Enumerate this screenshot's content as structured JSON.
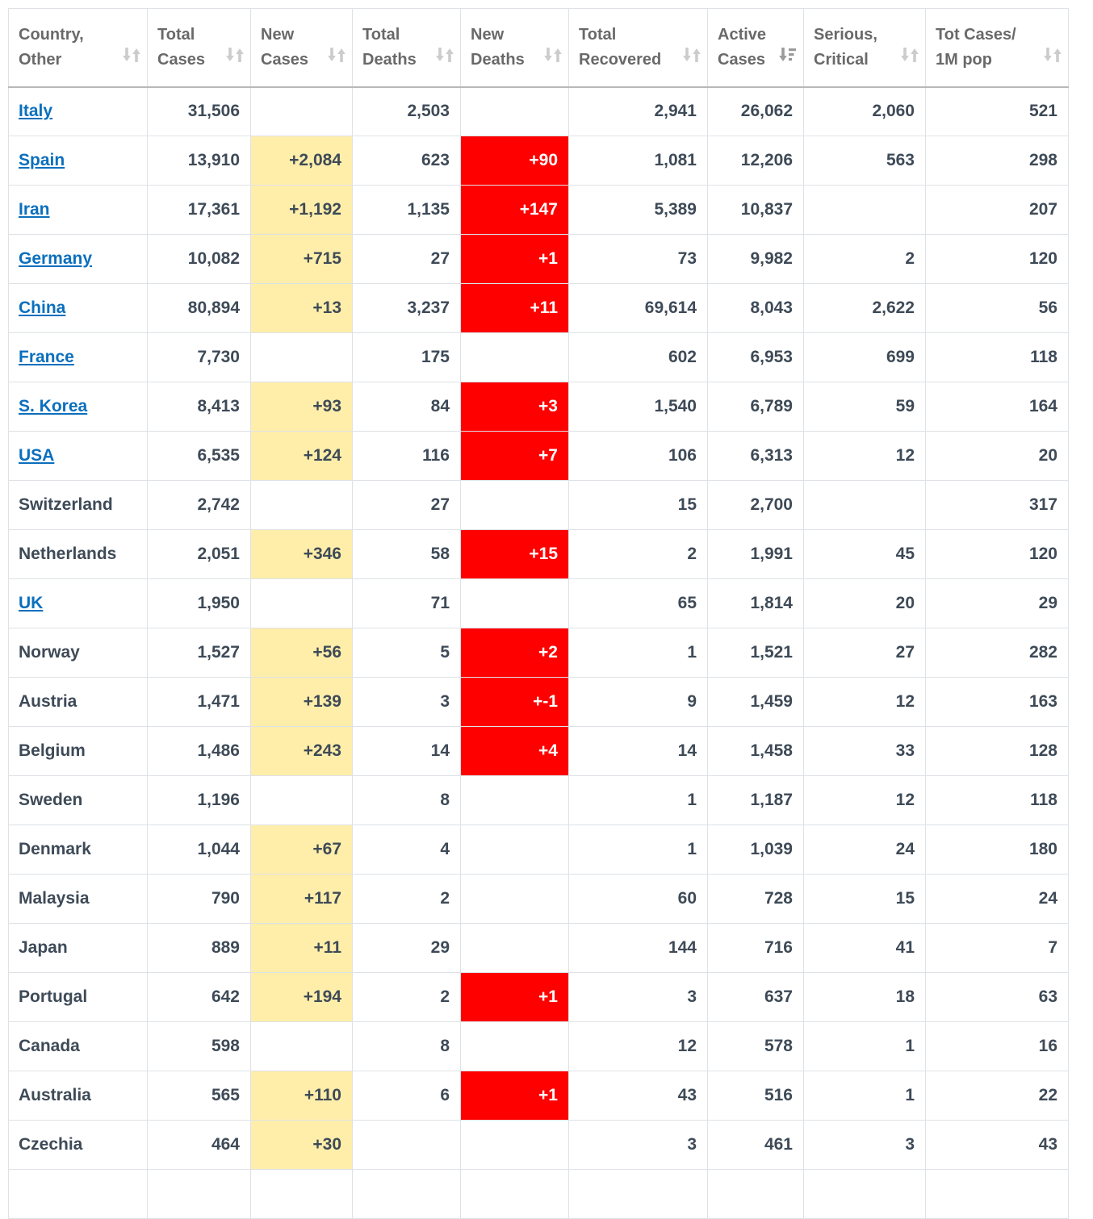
{
  "table": {
    "columns": [
      {
        "id": "country",
        "label": "Country, Other",
        "sort_state": "sortable"
      },
      {
        "id": "total_cases",
        "label": "Total Cases",
        "sort_state": "sortable"
      },
      {
        "id": "new_cases",
        "label": "New Cases",
        "sort_state": "sortable"
      },
      {
        "id": "total_deaths",
        "label": "Total Deaths",
        "sort_state": "sortable"
      },
      {
        "id": "new_deaths",
        "label": "New Deaths",
        "sort_state": "sortable"
      },
      {
        "id": "total_recovered",
        "label": "Total Recovered",
        "sort_state": "sortable"
      },
      {
        "id": "active_cases",
        "label": "Active Cases",
        "sort_state": "sorted-desc"
      },
      {
        "id": "serious_critical",
        "label": "Serious, Critical",
        "sort_state": "sortable"
      },
      {
        "id": "cases_per_1m",
        "label": "Tot Cases/ 1M pop",
        "sort_state": "sortable"
      }
    ],
    "rows": [
      {
        "country": "Italy",
        "is_link": true,
        "total_cases": "31,506",
        "new_cases": "",
        "total_deaths": "2,503",
        "new_deaths": "",
        "total_recovered": "2,941",
        "active_cases": "26,062",
        "serious_critical": "2,060",
        "cases_per_1m": "521"
      },
      {
        "country": "Spain",
        "is_link": true,
        "total_cases": "13,910",
        "new_cases": "+2,084",
        "total_deaths": "623",
        "new_deaths": "+90",
        "total_recovered": "1,081",
        "active_cases": "12,206",
        "serious_critical": "563",
        "cases_per_1m": "298"
      },
      {
        "country": "Iran",
        "is_link": true,
        "total_cases": "17,361",
        "new_cases": "+1,192",
        "total_deaths": "1,135",
        "new_deaths": "+147",
        "total_recovered": "5,389",
        "active_cases": "10,837",
        "serious_critical": "",
        "cases_per_1m": "207"
      },
      {
        "country": "Germany",
        "is_link": true,
        "total_cases": "10,082",
        "new_cases": "+715",
        "total_deaths": "27",
        "new_deaths": "+1",
        "total_recovered": "73",
        "active_cases": "9,982",
        "serious_critical": "2",
        "cases_per_1m": "120"
      },
      {
        "country": "China",
        "is_link": true,
        "total_cases": "80,894",
        "new_cases": "+13",
        "total_deaths": "3,237",
        "new_deaths": "+11",
        "total_recovered": "69,614",
        "active_cases": "8,043",
        "serious_critical": "2,622",
        "cases_per_1m": "56"
      },
      {
        "country": "France",
        "is_link": true,
        "total_cases": "7,730",
        "new_cases": "",
        "total_deaths": "175",
        "new_deaths": "",
        "total_recovered": "602",
        "active_cases": "6,953",
        "serious_critical": "699",
        "cases_per_1m": "118"
      },
      {
        "country": "S. Korea",
        "is_link": true,
        "total_cases": "8,413",
        "new_cases": "+93",
        "total_deaths": "84",
        "new_deaths": "+3",
        "total_recovered": "1,540",
        "active_cases": "6,789",
        "serious_critical": "59",
        "cases_per_1m": "164"
      },
      {
        "country": "USA",
        "is_link": true,
        "total_cases": "6,535",
        "new_cases": "+124",
        "total_deaths": "116",
        "new_deaths": "+7",
        "total_recovered": "106",
        "active_cases": "6,313",
        "serious_critical": "12",
        "cases_per_1m": "20"
      },
      {
        "country": "Switzerland",
        "is_link": false,
        "total_cases": "2,742",
        "new_cases": "",
        "total_deaths": "27",
        "new_deaths": "",
        "total_recovered": "15",
        "active_cases": "2,700",
        "serious_critical": "",
        "cases_per_1m": "317"
      },
      {
        "country": "Netherlands",
        "is_link": false,
        "total_cases": "2,051",
        "new_cases": "+346",
        "total_deaths": "58",
        "new_deaths": "+15",
        "total_recovered": "2",
        "active_cases": "1,991",
        "serious_critical": "45",
        "cases_per_1m": "120"
      },
      {
        "country": "UK",
        "is_link": true,
        "total_cases": "1,950",
        "new_cases": "",
        "total_deaths": "71",
        "new_deaths": "",
        "total_recovered": "65",
        "active_cases": "1,814",
        "serious_critical": "20",
        "cases_per_1m": "29"
      },
      {
        "country": "Norway",
        "is_link": false,
        "total_cases": "1,527",
        "new_cases": "+56",
        "total_deaths": "5",
        "new_deaths": "+2",
        "total_recovered": "1",
        "active_cases": "1,521",
        "serious_critical": "27",
        "cases_per_1m": "282"
      },
      {
        "country": "Austria",
        "is_link": false,
        "total_cases": "1,471",
        "new_cases": "+139",
        "total_deaths": "3",
        "new_deaths": "+-1",
        "total_recovered": "9",
        "active_cases": "1,459",
        "serious_critical": "12",
        "cases_per_1m": "163"
      },
      {
        "country": "Belgium",
        "is_link": false,
        "total_cases": "1,486",
        "new_cases": "+243",
        "total_deaths": "14",
        "new_deaths": "+4",
        "total_recovered": "14",
        "active_cases": "1,458",
        "serious_critical": "33",
        "cases_per_1m": "128"
      },
      {
        "country": "Sweden",
        "is_link": false,
        "total_cases": "1,196",
        "new_cases": "",
        "total_deaths": "8",
        "new_deaths": "",
        "total_recovered": "1",
        "active_cases": "1,187",
        "serious_critical": "12",
        "cases_per_1m": "118"
      },
      {
        "country": "Denmark",
        "is_link": false,
        "total_cases": "1,044",
        "new_cases": "+67",
        "total_deaths": "4",
        "new_deaths": "",
        "total_recovered": "1",
        "active_cases": "1,039",
        "serious_critical": "24",
        "cases_per_1m": "180"
      },
      {
        "country": "Malaysia",
        "is_link": false,
        "total_cases": "790",
        "new_cases": "+117",
        "total_deaths": "2",
        "new_deaths": "",
        "total_recovered": "60",
        "active_cases": "728",
        "serious_critical": "15",
        "cases_per_1m": "24"
      },
      {
        "country": "Japan",
        "is_link": false,
        "total_cases": "889",
        "new_cases": "+11",
        "total_deaths": "29",
        "new_deaths": "",
        "total_recovered": "144",
        "active_cases": "716",
        "serious_critical": "41",
        "cases_per_1m": "7"
      },
      {
        "country": "Portugal",
        "is_link": false,
        "total_cases": "642",
        "new_cases": "+194",
        "total_deaths": "2",
        "new_deaths": "+1",
        "total_recovered": "3",
        "active_cases": "637",
        "serious_critical": "18",
        "cases_per_1m": "63"
      },
      {
        "country": "Canada",
        "is_link": false,
        "total_cases": "598",
        "new_cases": "",
        "total_deaths": "8",
        "new_deaths": "",
        "total_recovered": "12",
        "active_cases": "578",
        "serious_critical": "1",
        "cases_per_1m": "16"
      },
      {
        "country": "Australia",
        "is_link": false,
        "total_cases": "565",
        "new_cases": "+110",
        "total_deaths": "6",
        "new_deaths": "+1",
        "total_recovered": "43",
        "active_cases": "516",
        "serious_critical": "1",
        "cases_per_1m": "22"
      },
      {
        "country": "Czechia",
        "is_link": false,
        "total_cases": "464",
        "new_cases": "+30",
        "total_deaths": "",
        "new_deaths": "",
        "total_recovered": "3",
        "active_cases": "461",
        "serious_critical": "3",
        "cases_per_1m": "43"
      },
      {
        "country": "",
        "is_link": false,
        "total_cases": "",
        "new_cases": "",
        "total_deaths": "",
        "new_deaths": "",
        "total_recovered": "",
        "active_cases": "",
        "serious_critical": "",
        "cases_per_1m": ""
      }
    ]
  },
  "colors": {
    "link_blue": "#0b6fbd",
    "new_cases_highlight_bg": "#ffeeaa",
    "new_deaths_highlight_bg": "#ff0000",
    "new_deaths_text": "#ffffff",
    "header_text": "#696969",
    "cell_text": "#3e4a57",
    "border": "#dee2e6",
    "sort_icon": "#cccccc",
    "sort_icon_active": "#9b9b9b"
  },
  "icons": {
    "sortable": "sort-up-down-icon",
    "sorted_desc": "sort-amount-desc-icon"
  }
}
